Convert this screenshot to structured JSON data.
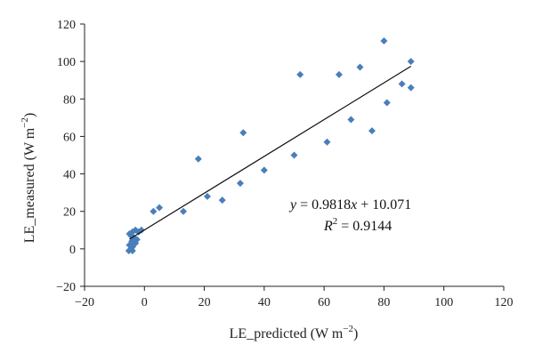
{
  "chart_data": {
    "type": "scatter",
    "xlabel": "LE_predicted (W m",
    "xlabel_sup": "−2",
    "xlabel_end": ")",
    "ylabel": "LE_measured (W m",
    "ylabel_sup": "−2",
    "ylabel_end": ")",
    "xlim": [
      -20,
      120
    ],
    "ylim": [
      -20,
      120
    ],
    "xticks": [
      "−20",
      "0",
      "20",
      "40",
      "60",
      "80",
      "100",
      "120"
    ],
    "yticks": [
      "−20",
      "0",
      "20",
      "40",
      "60",
      "80",
      "100",
      "120"
    ],
    "xtick_values": [
      -20,
      0,
      20,
      40,
      60,
      80,
      100,
      120
    ],
    "ytick_values": [
      -20,
      0,
      20,
      40,
      60,
      80,
      100,
      120
    ],
    "grid": false,
    "marker_color": "#4a7ebb",
    "line_color": "#111111",
    "points": [
      [
        -5,
        8
      ],
      [
        -4.5,
        7
      ],
      [
        -4,
        9
      ],
      [
        -3,
        10
      ],
      [
        -2,
        9
      ],
      [
        -3.5,
        6
      ],
      [
        -4.2,
        4
      ],
      [
        -5,
        2
      ],
      [
        -4.5,
        0
      ],
      [
        -5.2,
        -1
      ],
      [
        -4,
        1
      ],
      [
        -3,
        3
      ],
      [
        -2.5,
        5
      ],
      [
        -4,
        -1
      ],
      [
        -3.2,
        5
      ],
      [
        -1,
        10
      ],
      [
        3,
        20
      ],
      [
        5,
        22
      ],
      [
        13,
        20
      ],
      [
        18,
        48
      ],
      [
        21,
        28
      ],
      [
        26,
        26
      ],
      [
        32,
        35
      ],
      [
        33,
        62
      ],
      [
        40,
        42
      ],
      [
        50,
        50
      ],
      [
        52,
        93
      ],
      [
        61,
        57
      ],
      [
        65,
        93
      ],
      [
        69,
        69
      ],
      [
        72,
        97
      ],
      [
        76,
        63
      ],
      [
        80,
        111
      ],
      [
        81,
        78
      ],
      [
        86,
        88
      ],
      [
        89,
        100
      ],
      [
        89,
        86
      ]
    ],
    "fit": {
      "slope": 0.9818,
      "intercept": 10.071,
      "x_range": [
        -5,
        89
      ]
    },
    "annotation": {
      "equation_y": "y",
      "equation_rest": " = 0.9818",
      "equation_x": "x",
      "equation_end": " + 10.071",
      "r2_label": "R",
      "r2_sup": "2",
      "r2_value": " = 0.9144"
    }
  }
}
